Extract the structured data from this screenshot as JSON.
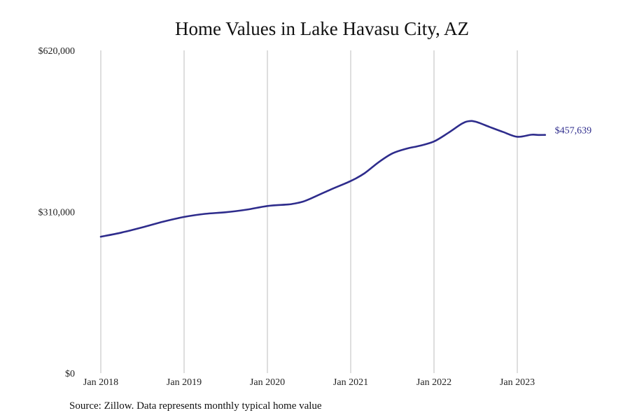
{
  "chart_data": {
    "type": "line",
    "title": "Home Values in Lake Havasu City, AZ",
    "source": "Source: Zillow. Data represents monthly typical home value",
    "line_color": "#2e2c8c",
    "grid": true,
    "ylim": [
      0,
      620000
    ],
    "y_ticks": [
      "$0",
      "$310,000",
      "$620,000"
    ],
    "y_tick_values": [
      0,
      310000,
      620000
    ],
    "x_ticks": [
      "Jan 2018",
      "Jan 2019",
      "Jan 2020",
      "Jan 2021",
      "Jan 2022",
      "Jan 2023"
    ],
    "end_label": "$457,639",
    "series": [
      {
        "x": [
          "2018-01",
          "2018-04",
          "2018-07",
          "2018-10",
          "2019-01",
          "2019-04",
          "2019-07",
          "2019-10",
          "2020-01",
          "2020-04",
          "2020-05",
          "2020-06",
          "2020-07",
          "2020-10",
          "2021-01",
          "2021-03",
          "2021-05",
          "2021-07",
          "2021-09",
          "2021-11",
          "2022-01",
          "2022-03",
          "2022-05",
          "2022-06",
          "2022-07",
          "2022-09",
          "2022-11",
          "2023-01",
          "2023-03",
          "2023-04",
          "2023-05"
        ],
        "values": [
          262000,
          270000,
          280000,
          291000,
          300000,
          306000,
          309000,
          314000,
          321000,
          324000,
          326000,
          329000,
          334000,
          352000,
          369000,
          384000,
          405000,
          422000,
          431000,
          437000,
          445000,
          461000,
          479000,
          484000,
          483000,
          473000,
          463000,
          454000,
          458000,
          457500,
          457639
        ]
      }
    ]
  }
}
